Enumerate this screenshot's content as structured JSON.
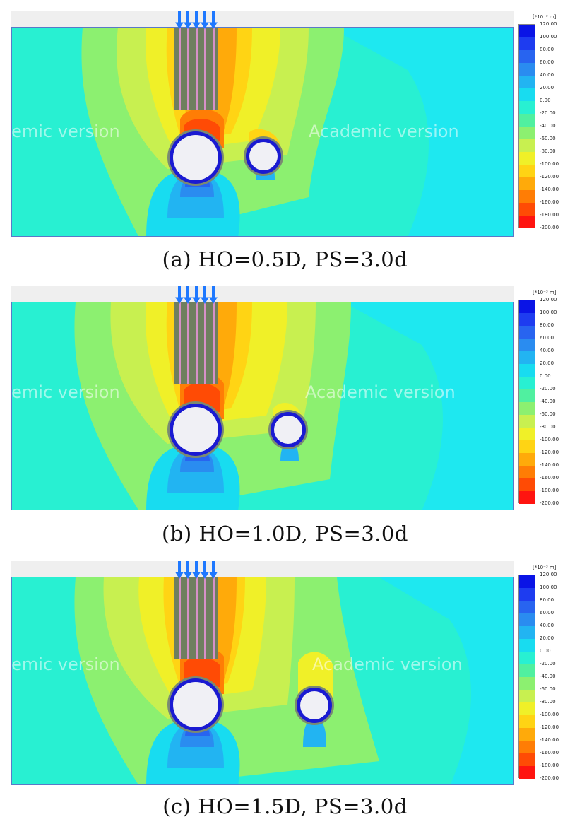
{
  "panels": [
    {
      "caption": "(a) HO=0.5D, PS=3.0d",
      "watermark": "Academic version"
    },
    {
      "caption": "(b) HO=1.0D, PS=3.0d",
      "watermark": "Academic version"
    },
    {
      "caption": "(c) HO=1.5D, PS=3.0d",
      "watermark": "Academic version"
    }
  ],
  "legend": {
    "unit": "[*10⁻³ m]",
    "ticks": [
      "120.00",
      "100.00",
      "80.00",
      "60.00",
      "40.00",
      "20.00",
      "0.00",
      "-20.00",
      "-40.00",
      "-60.00",
      "-80.00",
      "-100.00",
      "-120.00",
      "-140.00",
      "-160.00",
      "-180.00",
      "-200.00"
    ],
    "colors": [
      "#0a14e6",
      "#1e3cf0",
      "#2864f0",
      "#2a8cf0",
      "#22b4f2",
      "#18dcf0",
      "#28f0d2",
      "#50f0a0",
      "#8cf070",
      "#c8f050",
      "#f0f028",
      "#ffd414",
      "#ffaa0a",
      "#ff7d05",
      "#ff4b05",
      "#ff1410"
    ]
  },
  "colors": {
    "background": "#1ee8f0",
    "frame": "#5a78c8",
    "load_arrow": "#1e78ff",
    "tunnel_ring": "#1a1ad2"
  }
}
